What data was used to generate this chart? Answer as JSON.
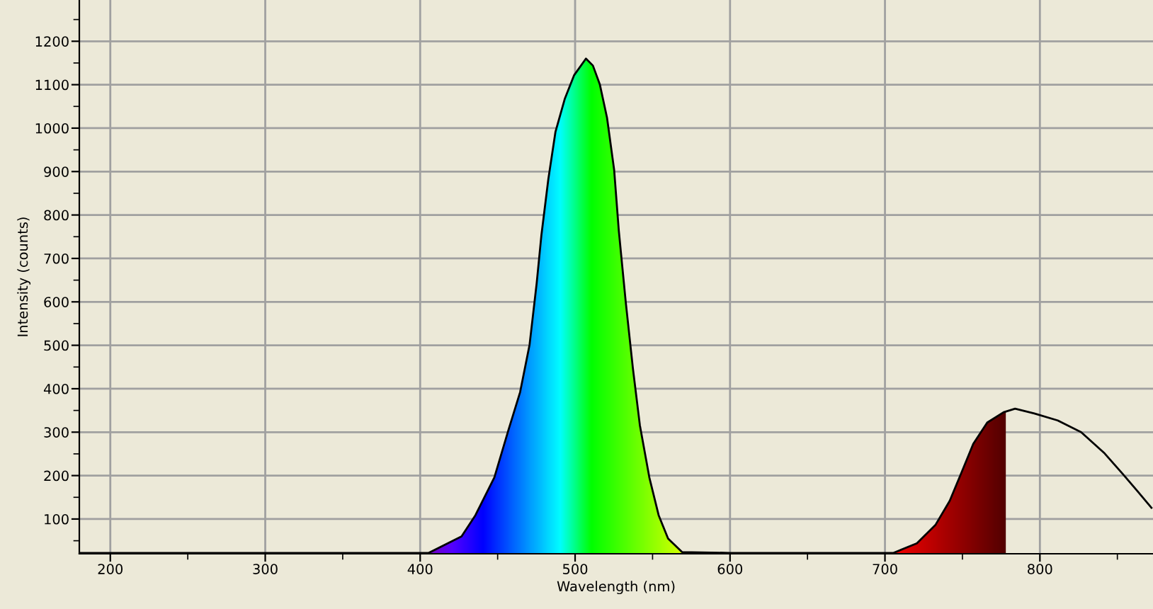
{
  "chart_data": {
    "type": "line",
    "xlabel": "Wavelength (nm)",
    "ylabel": "Intensity (counts)",
    "xlim": [
      180,
      873
    ],
    "ylim": [
      20,
      1295
    ],
    "xticks": [
      200,
      300,
      400,
      500,
      600,
      700,
      800
    ],
    "yticks": [
      100,
      200,
      300,
      400,
      500,
      600,
      700,
      800,
      900,
      1000,
      1100,
      1200
    ],
    "grid": true,
    "marker": "none",
    "line_style": "solid",
    "series": [
      {
        "color": "#000000",
        "x": [
          180,
          300,
          400,
          405.5,
          426.7,
          435.7,
          447.9,
          457,
          464.5,
          470.6,
          475.2,
          478.2,
          482.7,
          487.3,
          493.4,
          499.4,
          507,
          511.5,
          516,
          520.6,
          525.2,
          528.2,
          532.7,
          537.3,
          541.8,
          547.9,
          553.9,
          560,
          569,
          600,
          700,
          705.5,
          720.6,
          732.7,
          741.8,
          749.4,
          757,
          766,
          776.6,
          784,
          796.4,
          811.5,
          826.6,
          841.8,
          853.9,
          863,
          872
        ],
        "values": [
          22,
          22,
          22,
          22,
          60,
          109,
          196,
          305,
          392,
          501,
          643,
          752,
          882,
          991,
          1068,
          1122,
          1160,
          1144,
          1100,
          1024,
          904,
          764,
          599,
          447,
          316,
          196,
          109,
          55,
          24,
          22,
          22,
          22,
          44,
          87,
          142,
          207,
          273,
          322,
          346,
          354,
          343,
          327,
          300,
          251,
          202,
          164,
          126
        ]
      }
    ]
  }
}
